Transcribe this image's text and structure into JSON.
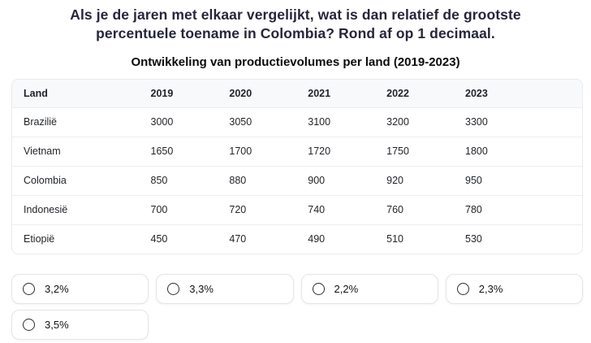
{
  "question": "Als je de jaren met elkaar vergelijkt, wat is dan relatief de grootste percentuele toename in Colombia? Rond af op 1 decimaal.",
  "table": {
    "title": "Ontwikkeling van productievolumes per land (2019-2023)",
    "columns": [
      "Land",
      "2019",
      "2020",
      "2021",
      "2022",
      "2023"
    ],
    "rows": [
      [
        "Brazilië",
        "3000",
        "3050",
        "3100",
        "3200",
        "3300"
      ],
      [
        "Vietnam",
        "1650",
        "1700",
        "1720",
        "1750",
        "1800"
      ],
      [
        "Colombia",
        "850",
        "880",
        "900",
        "920",
        "950"
      ],
      [
        "Indonesië",
        "700",
        "720",
        "740",
        "760",
        "780"
      ],
      [
        "Etiopië",
        "450",
        "470",
        "490",
        "510",
        "530"
      ]
    ]
  },
  "options": [
    "3,2%",
    "3,3%",
    "2,2%",
    "2,3%",
    "3,5%"
  ],
  "colors": {
    "question_text": "#26263a",
    "table_header_bg": "#f8f9fb",
    "table_border": "#e8eaec",
    "card_border": "#e4e5e8",
    "radio_outline": "#2d2d2d"
  }
}
